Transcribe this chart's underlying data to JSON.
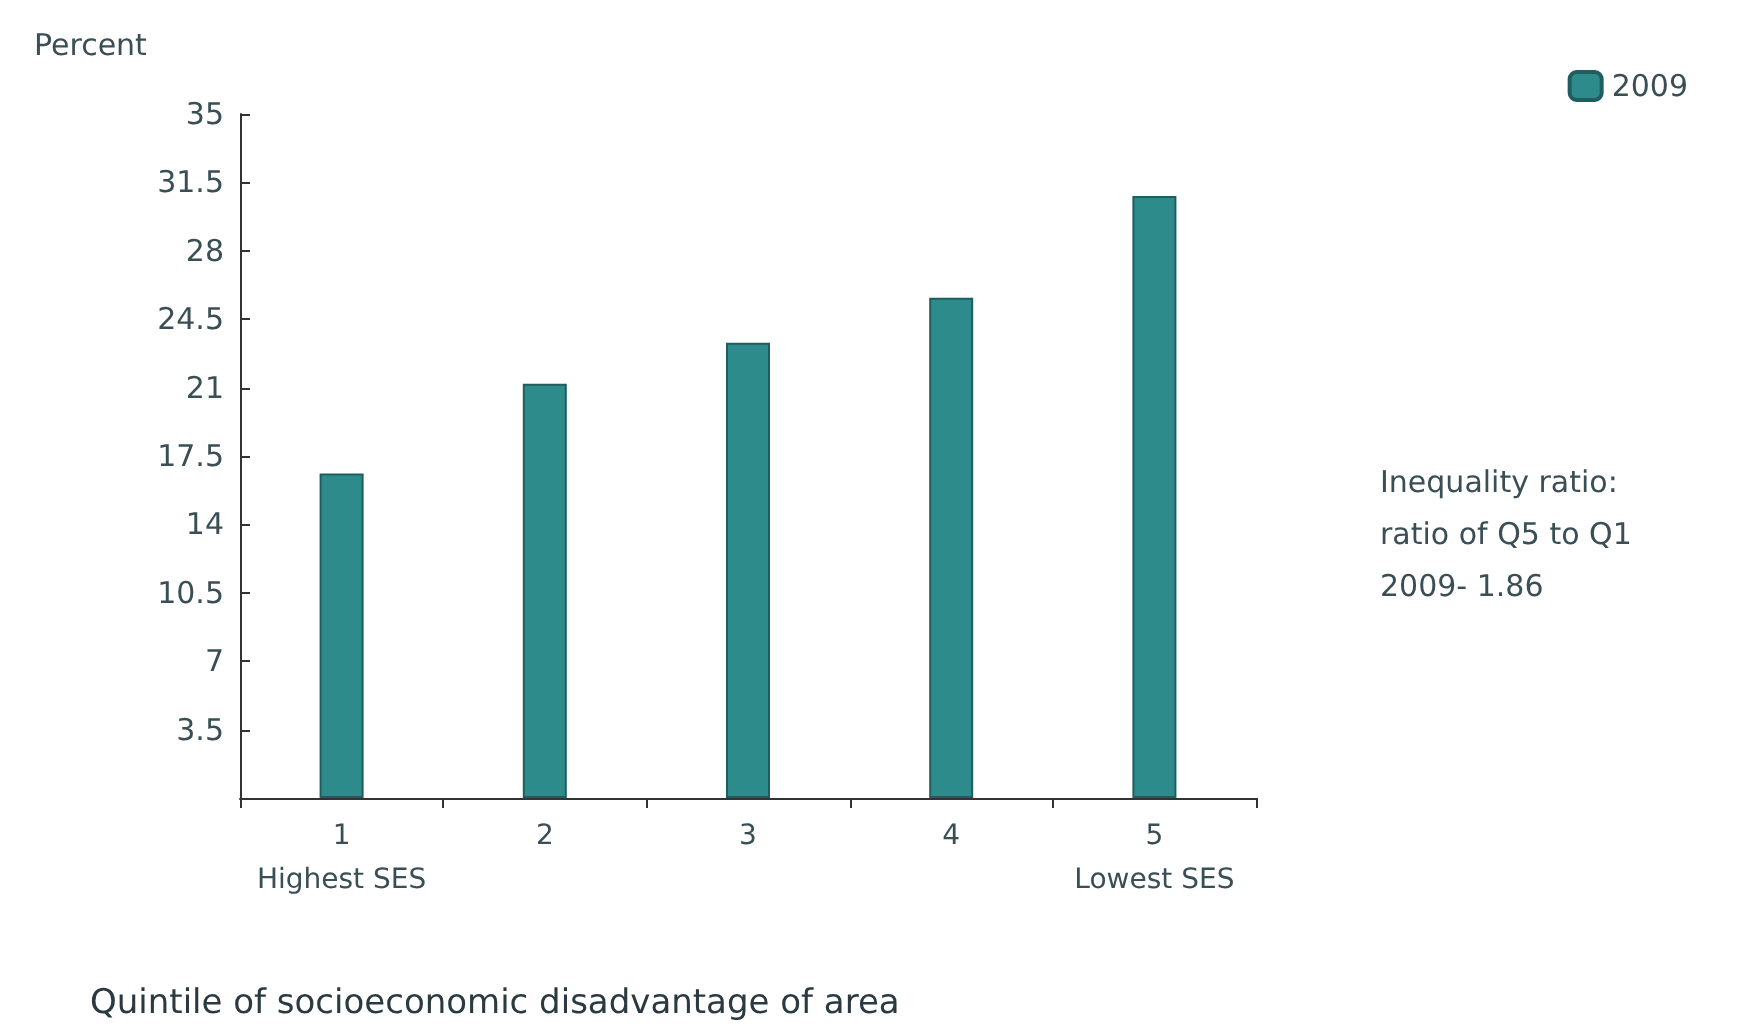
{
  "chart_data": {
    "type": "bar",
    "ylabel": "Percent",
    "xlabel": "Quintile of socioeconomic disadvantage of area",
    "categories": [
      "1\nHighest SES",
      "2",
      "3",
      "4",
      "5\nLowest SES"
    ],
    "series": [
      {
        "name": "2009",
        "color": "#2e8b8b",
        "values": [
          16.6,
          21.2,
          23.3,
          25.6,
          30.8
        ]
      }
    ],
    "ylim": [
      0,
      35
    ],
    "yticks": [
      {
        "value": 0,
        "label": null
      },
      3.5,
      7,
      10.5,
      14,
      17.5,
      21,
      24.5,
      28,
      31.5,
      35
    ],
    "grid": false,
    "legend": "top right",
    "annotations": [
      "Inequality ratio:\nratio of Q5 to Q1\n2009- 1.86"
    ]
  }
}
